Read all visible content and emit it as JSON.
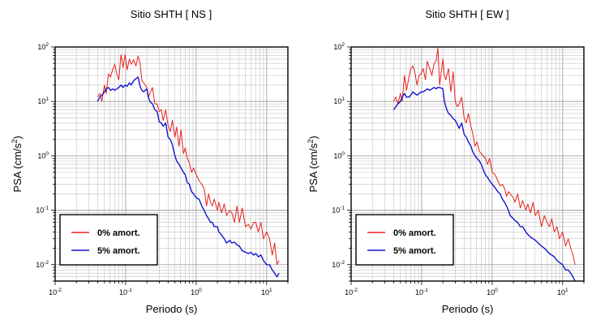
{
  "chart_data": [
    {
      "type": "line",
      "title": "Sitio SHTH [ NS ]",
      "xlabel": "Periodo (s)",
      "ylabel_base": "PSA (cm/s",
      "ylabel_sup": "2",
      "ylabel_close": ")",
      "xscale": "log",
      "yscale": "log",
      "xlim": [
        0.01,
        20
      ],
      "ylim": [
        0.005,
        100
      ],
      "grid": true,
      "legend_position": "bottom-left",
      "x_ticks": [
        {
          "value": 0.01,
          "base": "10",
          "exp": "-2"
        },
        {
          "value": 0.1,
          "base": "10",
          "exp": "-1"
        },
        {
          "value": 1,
          "base": "10",
          "exp": "0"
        },
        {
          "value": 10,
          "base": "10",
          "exp": "1"
        }
      ],
      "y_ticks": [
        {
          "value": 0.01,
          "base": "10",
          "exp": "-2"
        },
        {
          "value": 0.1,
          "base": "10",
          "exp": "-1"
        },
        {
          "value": 1,
          "base": "10",
          "exp": "0"
        },
        {
          "value": 10,
          "base": "10",
          "exp": "1"
        },
        {
          "value": 100,
          "base": "10",
          "exp": "2"
        }
      ],
      "series": [
        {
          "name": "0% amort.",
          "color": "#e8201c",
          "x": [
            0.04,
            0.043,
            0.046,
            0.05,
            0.053,
            0.057,
            0.061,
            0.066,
            0.07,
            0.075,
            0.08,
            0.086,
            0.092,
            0.098,
            0.105,
            0.113,
            0.12,
            0.13,
            0.14,
            0.15,
            0.16,
            0.17,
            0.18,
            0.2,
            0.21,
            0.22,
            0.24,
            0.26,
            0.28,
            0.3,
            0.32,
            0.34,
            0.37,
            0.4,
            0.43,
            0.46,
            0.5,
            0.53,
            0.57,
            0.61,
            0.66,
            0.7,
            0.75,
            0.8,
            0.86,
            0.92,
            1.0,
            1.1,
            1.2,
            1.3,
            1.4,
            1.5,
            1.6,
            1.7,
            1.8,
            2.0,
            2.1,
            2.3,
            2.5,
            2.7,
            3.0,
            3.2,
            3.5,
            3.8,
            4.1,
            4.5,
            5.0,
            5.5,
            6.0,
            6.5,
            7.0,
            7.6,
            8.3,
            9.0,
            10.0,
            11.0,
            12.0,
            13.0,
            14.0,
            15.0
          ],
          "y": [
            12,
            14,
            10,
            20,
            14,
            32,
            28,
            40,
            48,
            32,
            25,
            72,
            42,
            72,
            38,
            60,
            48,
            58,
            45,
            68,
            50,
            24,
            22,
            18,
            12,
            14,
            18,
            9,
            9,
            6.5,
            7,
            4.5,
            7,
            3.6,
            2.8,
            4.5,
            2.2,
            3.4,
            1.5,
            3.0,
            1.1,
            1.4,
            0.9,
            0.75,
            0.5,
            0.6,
            0.45,
            0.35,
            0.3,
            0.25,
            0.12,
            0.2,
            0.14,
            0.12,
            0.16,
            0.1,
            0.14,
            0.09,
            0.13,
            0.08,
            0.1,
            0.09,
            0.06,
            0.12,
            0.06,
            0.11,
            0.05,
            0.055,
            0.045,
            0.06,
            0.06,
            0.04,
            0.06,
            0.03,
            0.04,
            0.03,
            0.015,
            0.025,
            0.01,
            0.012
          ]
        },
        {
          "name": "5% amort.",
          "color": "#1414d2",
          "x": [
            0.04,
            0.043,
            0.046,
            0.05,
            0.053,
            0.057,
            0.061,
            0.066,
            0.07,
            0.075,
            0.08,
            0.086,
            0.092,
            0.098,
            0.105,
            0.113,
            0.12,
            0.13,
            0.14,
            0.15,
            0.16,
            0.17,
            0.18,
            0.2,
            0.21,
            0.22,
            0.24,
            0.26,
            0.28,
            0.3,
            0.32,
            0.34,
            0.37,
            0.4,
            0.43,
            0.46,
            0.5,
            0.53,
            0.57,
            0.61,
            0.66,
            0.7,
            0.75,
            0.8,
            0.86,
            0.92,
            1.0,
            1.1,
            1.2,
            1.3,
            1.4,
            1.5,
            1.6,
            1.7,
            1.8,
            2.0,
            2.1,
            2.3,
            2.5,
            2.7,
            3.0,
            3.2,
            3.5,
            3.8,
            4.1,
            4.5,
            5.0,
            5.5,
            6.0,
            6.5,
            7.0,
            7.6,
            8.3,
            9.0,
            10.0,
            11.0,
            12.0,
            13.0,
            14.0,
            15.0
          ],
          "y": [
            10,
            12,
            13,
            15,
            17,
            18,
            16,
            17,
            16,
            17,
            18,
            20,
            18,
            20,
            19,
            22,
            20,
            24,
            26,
            28,
            19,
            16,
            15,
            17,
            12,
            10,
            9,
            7,
            6.5,
            4.2,
            4,
            3.5,
            4,
            2.2,
            2.0,
            1.6,
            1.0,
            0.8,
            0.7,
            0.6,
            0.5,
            0.45,
            0.32,
            0.3,
            0.22,
            0.2,
            0.17,
            0.16,
            0.12,
            0.1,
            0.08,
            0.07,
            0.06,
            0.06,
            0.05,
            0.05,
            0.04,
            0.035,
            0.03,
            0.025,
            0.028,
            0.025,
            0.026,
            0.023,
            0.022,
            0.018,
            0.017,
            0.016,
            0.017,
            0.015,
            0.016,
            0.014,
            0.015,
            0.012,
            0.01,
            0.01,
            0.008,
            0.007,
            0.006,
            0.007
          ]
        }
      ]
    },
    {
      "type": "line",
      "title": "Sitio SHTH [ EW ]",
      "xlabel": "Periodo (s)",
      "ylabel_base": "PSA (cm/s",
      "ylabel_sup": "2",
      "ylabel_close": ")",
      "xscale": "log",
      "yscale": "log",
      "xlim": [
        0.01,
        20
      ],
      "ylim": [
        0.005,
        100
      ],
      "grid": true,
      "legend_position": "bottom-left",
      "x_ticks": [
        {
          "value": 0.01,
          "base": "10",
          "exp": "-2"
        },
        {
          "value": 0.1,
          "base": "10",
          "exp": "-1"
        },
        {
          "value": 1,
          "base": "10",
          "exp": "0"
        },
        {
          "value": 10,
          "base": "10",
          "exp": "1"
        }
      ],
      "y_ticks": [
        {
          "value": 0.01,
          "base": "10",
          "exp": "-2"
        },
        {
          "value": 0.1,
          "base": "10",
          "exp": "-1"
        },
        {
          "value": 1,
          "base": "10",
          "exp": "0"
        },
        {
          "value": 10,
          "base": "10",
          "exp": "1"
        },
        {
          "value": 100,
          "base": "10",
          "exp": "2"
        }
      ],
      "series": [
        {
          "name": "0% amort.",
          "color": "#e8201c",
          "x": [
            0.04,
            0.043,
            0.046,
            0.05,
            0.053,
            0.057,
            0.061,
            0.066,
            0.07,
            0.075,
            0.08,
            0.086,
            0.092,
            0.098,
            0.105,
            0.113,
            0.12,
            0.13,
            0.14,
            0.15,
            0.16,
            0.17,
            0.18,
            0.2,
            0.21,
            0.22,
            0.24,
            0.26,
            0.28,
            0.3,
            0.32,
            0.34,
            0.37,
            0.4,
            0.43,
            0.46,
            0.5,
            0.53,
            0.57,
            0.61,
            0.66,
            0.7,
            0.75,
            0.8,
            0.86,
            0.92,
            1.0,
            1.1,
            1.2,
            1.3,
            1.4,
            1.5,
            1.6,
            1.7,
            1.8,
            2.0,
            2.1,
            2.3,
            2.5,
            2.7,
            3.0,
            3.2,
            3.5,
            3.8,
            4.1,
            4.5,
            5.0,
            5.5,
            6.0,
            6.5,
            7.0,
            7.6,
            8.3,
            9.0,
            10.0,
            11.0,
            12.0,
            13.0,
            14.0,
            15.0
          ],
          "y": [
            10,
            12,
            9,
            14,
            10,
            30,
            16,
            28,
            40,
            45,
            35,
            20,
            30,
            32,
            40,
            25,
            55,
            40,
            30,
            50,
            55,
            95,
            20,
            60,
            30,
            25,
            40,
            15,
            35,
            10,
            8,
            9,
            12,
            5,
            4,
            6,
            3.5,
            2.6,
            1.5,
            1.8,
            1.2,
            1.1,
            1.0,
            0.9,
            0.7,
            0.9,
            0.5,
            0.45,
            0.35,
            0.28,
            0.3,
            0.25,
            0.18,
            0.22,
            0.2,
            0.17,
            0.14,
            0.2,
            0.11,
            0.15,
            0.1,
            0.13,
            0.09,
            0.14,
            0.08,
            0.1,
            0.05,
            0.08,
            0.06,
            0.05,
            0.07,
            0.04,
            0.05,
            0.03,
            0.04,
            0.022,
            0.03,
            0.02,
            0.015,
            0.01
          ]
        },
        {
          "name": "5% amort.",
          "color": "#1414d2",
          "x": [
            0.04,
            0.043,
            0.046,
            0.05,
            0.053,
            0.057,
            0.061,
            0.066,
            0.07,
            0.075,
            0.08,
            0.086,
            0.092,
            0.098,
            0.105,
            0.113,
            0.12,
            0.13,
            0.14,
            0.15,
            0.16,
            0.17,
            0.18,
            0.2,
            0.21,
            0.22,
            0.24,
            0.26,
            0.28,
            0.3,
            0.32,
            0.34,
            0.37,
            0.4,
            0.43,
            0.46,
            0.5,
            0.53,
            0.57,
            0.61,
            0.66,
            0.7,
            0.75,
            0.8,
            0.86,
            0.92,
            1.0,
            1.1,
            1.2,
            1.3,
            1.4,
            1.5,
            1.6,
            1.7,
            1.8,
            2.0,
            2.1,
            2.3,
            2.5,
            2.7,
            3.0,
            3.2,
            3.5,
            3.8,
            4.1,
            4.5,
            5.0,
            5.5,
            6.0,
            6.5,
            7.0,
            7.6,
            8.3,
            9.0,
            10.0,
            11.0,
            12.0,
            13.0,
            14.0,
            15.0
          ],
          "y": [
            7,
            8,
            9,
            10,
            12,
            14,
            12,
            12,
            13,
            15,
            14,
            13,
            14,
            15,
            15,
            16,
            17,
            16,
            17,
            18,
            17,
            18,
            18,
            17,
            10,
            8,
            6,
            5.5,
            4.8,
            4.5,
            3.8,
            3.2,
            4,
            2.5,
            2.2,
            1.8,
            1.5,
            1.2,
            1.0,
            0.9,
            0.8,
            0.7,
            0.55,
            0.45,
            0.4,
            0.35,
            0.3,
            0.26,
            0.22,
            0.2,
            0.16,
            0.14,
            0.12,
            0.1,
            0.08,
            0.07,
            0.065,
            0.06,
            0.05,
            0.05,
            0.04,
            0.036,
            0.032,
            0.03,
            0.028,
            0.025,
            0.022,
            0.02,
            0.018,
            0.016,
            0.015,
            0.014,
            0.012,
            0.011,
            0.01,
            0.008,
            0.008,
            0.007,
            0.006,
            0.005
          ]
        }
      ]
    }
  ]
}
